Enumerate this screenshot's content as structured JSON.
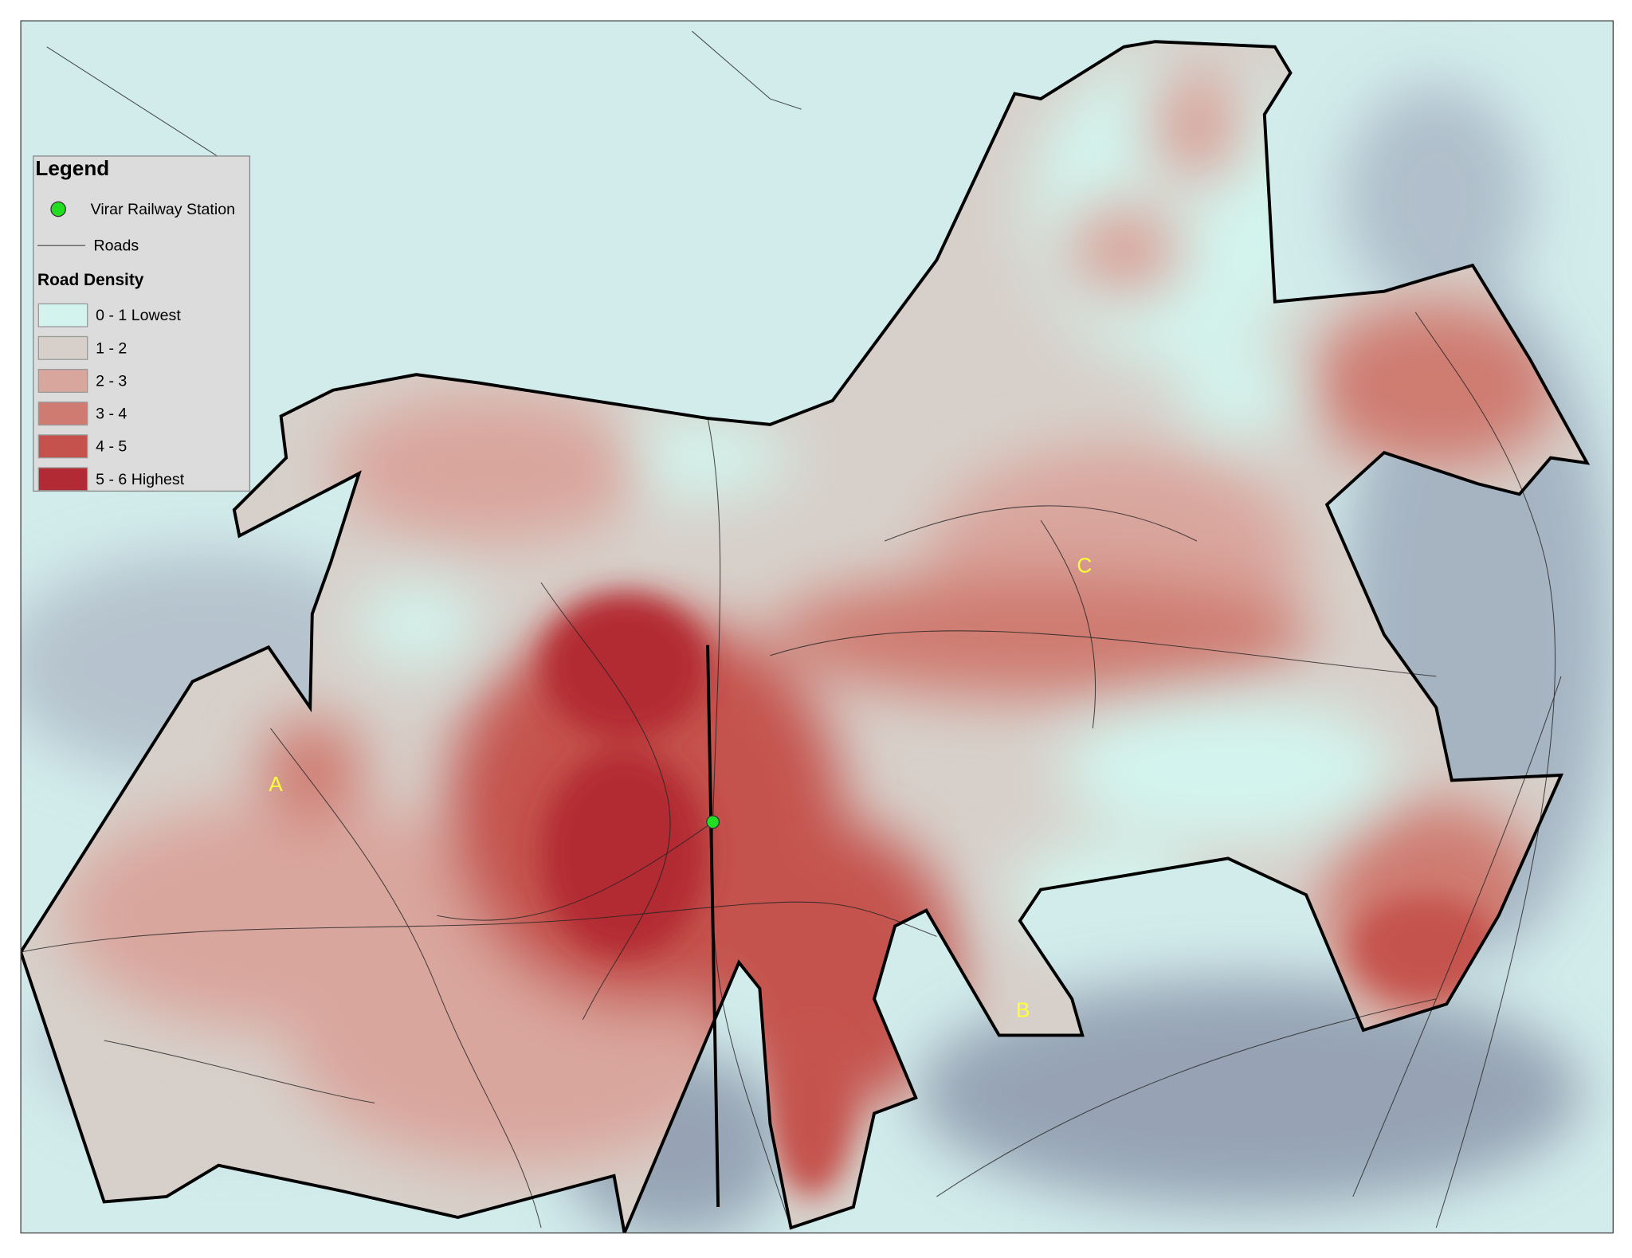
{
  "legend": {
    "title": "Legend",
    "symbols": [
      {
        "label": "Virar Railway Station",
        "color": "#22dd22"
      },
      {
        "label": "Roads",
        "color": "#555555"
      }
    ],
    "density_title": "Road Density",
    "classes": [
      {
        "label": "0 - 1  Lowest",
        "color": "#d3f4ee"
      },
      {
        "label": "1 - 2",
        "color": "#d7d0ca"
      },
      {
        "label": "2 - 3",
        "color": "#d9a69d"
      },
      {
        "label": "3 - 4",
        "color": "#cf7b71"
      },
      {
        "label": "4 - 5",
        "color": "#c5524d"
      },
      {
        "label": "5 - 6 Highest",
        "color": "#b22a33"
      }
    ]
  },
  "zones": [
    {
      "label": "A"
    },
    {
      "label": "B"
    },
    {
      "label": "C"
    }
  ]
}
